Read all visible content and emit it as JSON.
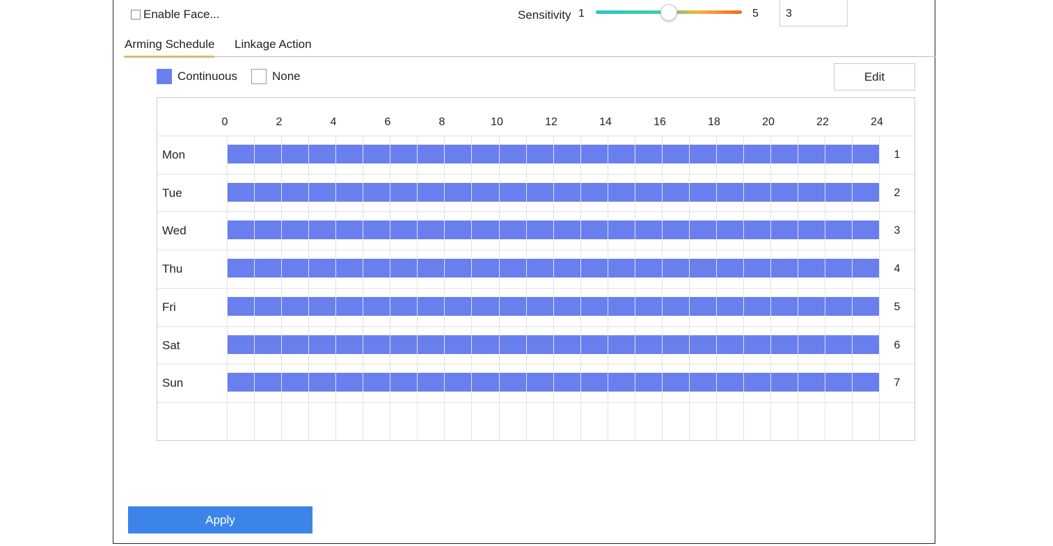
{
  "enable": {
    "label": "Enable Face..."
  },
  "sensitivity": {
    "label": "Sensitivity",
    "min_label": "1",
    "max_label": "5",
    "value": "3",
    "level": 3,
    "min": 1,
    "max": 5
  },
  "tabs": [
    {
      "label": "Arming Schedule"
    },
    {
      "label": "Linkage Action"
    }
  ],
  "legend": [
    {
      "label": "Continuous",
      "color": "#6a7fee"
    },
    {
      "label": "None",
      "color": "#ffffff"
    }
  ],
  "edit_label": "Edit",
  "hours": [
    "0",
    "2",
    "4",
    "6",
    "8",
    "10",
    "12",
    "14",
    "16",
    "18",
    "20",
    "22",
    "24"
  ],
  "days": [
    {
      "label": "Mon",
      "number": "1"
    },
    {
      "label": "Tue",
      "number": "2"
    },
    {
      "label": "Wed",
      "number": "3"
    },
    {
      "label": "Thu",
      "number": "4"
    },
    {
      "label": "Fri",
      "number": "5"
    },
    {
      "label": "Sat",
      "number": "6"
    },
    {
      "label": "Sun",
      "number": "7"
    }
  ],
  "schedule_color": "#6a7fee",
  "apply_label": "Apply"
}
